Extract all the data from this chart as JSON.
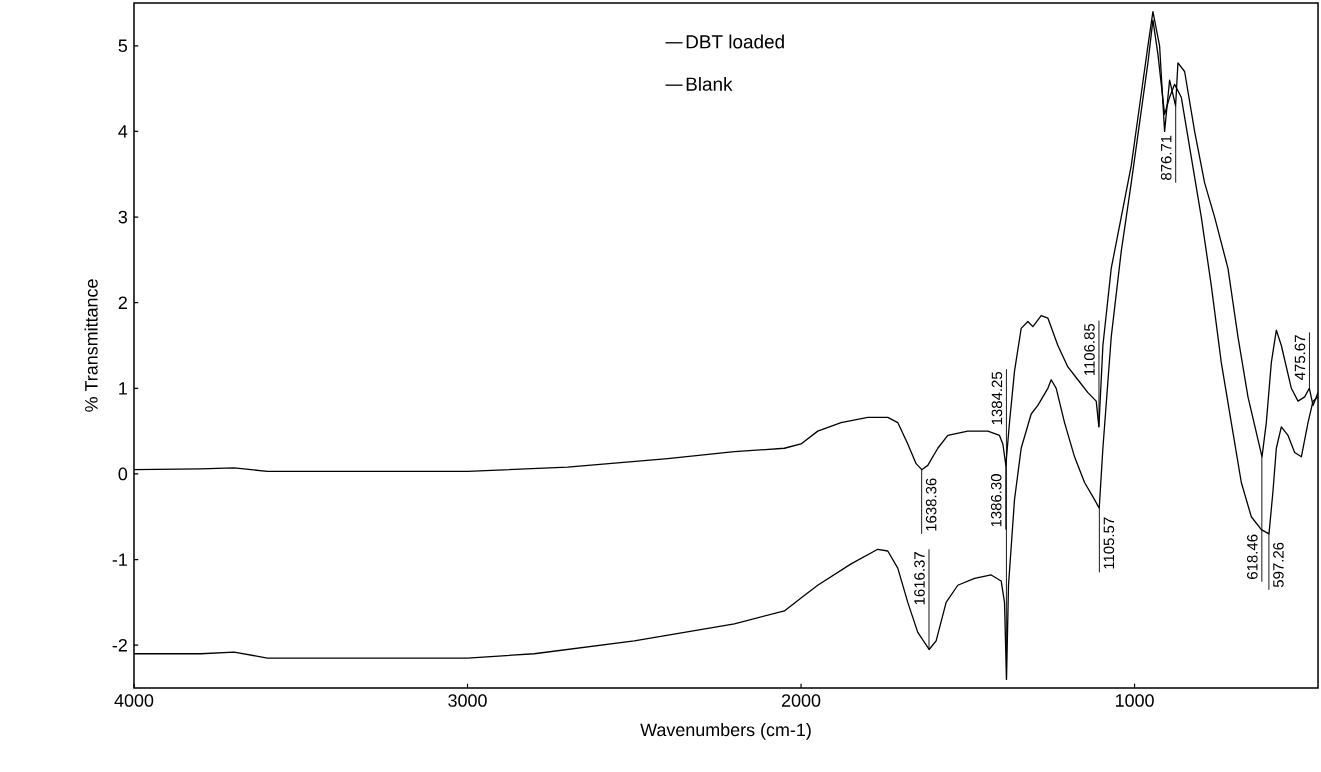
{
  "chart_data": {
    "type": "line",
    "xlabel": "Wavenumbers (cm-1)",
    "ylabel": "% Transmittance",
    "xlim": [
      4000,
      450
    ],
    "ylim": [
      -2.5,
      5.5
    ],
    "xticks": [
      4000,
      3000,
      2000,
      1000
    ],
    "yticks": [
      -2,
      -1,
      0,
      1,
      2,
      3,
      4,
      5
    ],
    "grid": false,
    "legend": "top",
    "line_style": "solid",
    "marker": "none",
    "series": [
      {
        "name": "DBT loaded",
        "color": "#000000",
        "x": [
          4000,
          3800,
          3700,
          3600,
          3300,
          3000,
          2700,
          2400,
          2200,
          2050,
          2000,
          1950,
          1880,
          1800,
          1740,
          1710,
          1680,
          1655,
          1638,
          1620,
          1590,
          1560,
          1500,
          1440,
          1405,
          1395,
          1386,
          1375,
          1360,
          1340,
          1320,
          1305,
          1280,
          1260,
          1230,
          1200,
          1170,
          1140,
          1115,
          1107,
          1095,
          1070,
          1040,
          1010,
          985,
          960,
          945,
          925,
          910,
          895,
          877,
          870,
          850,
          820,
          790,
          760,
          720,
          690,
          660,
          630,
          618,
          605,
          590,
          575,
          560,
          530,
          510,
          490,
          476,
          465,
          450
        ],
        "values": [
          0.05,
          0.06,
          0.07,
          0.03,
          0.03,
          0.03,
          0.08,
          0.18,
          0.26,
          0.3,
          0.35,
          0.5,
          0.6,
          0.66,
          0.66,
          0.6,
          0.35,
          0.12,
          0.05,
          0.1,
          0.3,
          0.45,
          0.5,
          0.5,
          0.45,
          0.35,
          0.1,
          0.6,
          1.2,
          1.7,
          1.78,
          1.72,
          1.85,
          1.82,
          1.5,
          1.25,
          1.1,
          0.95,
          0.85,
          0.55,
          1.5,
          2.4,
          3.0,
          3.6,
          4.3,
          5.0,
          5.4,
          5.0,
          4.0,
          4.6,
          4.3,
          4.8,
          4.7,
          4.0,
          3.4,
          3.0,
          2.4,
          1.6,
          0.9,
          0.4,
          0.2,
          0.6,
          1.3,
          1.68,
          1.5,
          1.0,
          0.85,
          0.9,
          1.0,
          0.8,
          0.95
        ]
      },
      {
        "name": "Blank",
        "color": "#000000",
        "x": [
          4000,
          3800,
          3700,
          3600,
          3300,
          3000,
          2800,
          2500,
          2200,
          2050,
          2000,
          1950,
          1850,
          1770,
          1740,
          1710,
          1680,
          1650,
          1616,
          1595,
          1565,
          1530,
          1480,
          1430,
          1400,
          1390,
          1384,
          1378,
          1360,
          1340,
          1310,
          1290,
          1260,
          1250,
          1235,
          1210,
          1180,
          1150,
          1120,
          1106,
          1095,
          1070,
          1040,
          1010,
          985,
          960,
          945,
          930,
          910,
          895,
          880,
          860,
          830,
          800,
          770,
          740,
          710,
          680,
          650,
          620,
          597,
          585,
          575,
          560,
          540,
          520,
          500,
          480,
          465,
          450
        ],
        "values": [
          -2.1,
          -2.1,
          -2.08,
          -2.15,
          -2.15,
          -2.15,
          -2.1,
          -1.95,
          -1.75,
          -1.6,
          -1.45,
          -1.3,
          -1.05,
          -0.88,
          -0.9,
          -1.1,
          -1.5,
          -1.85,
          -2.05,
          -1.95,
          -1.5,
          -1.3,
          -1.22,
          -1.18,
          -1.25,
          -1.5,
          -2.4,
          -1.3,
          -0.3,
          0.3,
          0.7,
          0.8,
          1.0,
          1.1,
          1.0,
          0.6,
          0.2,
          -0.1,
          -0.3,
          -0.4,
          0.3,
          1.6,
          2.6,
          3.4,
          4.1,
          4.8,
          5.3,
          4.9,
          4.2,
          4.4,
          4.55,
          4.4,
          3.7,
          3.0,
          2.2,
          1.3,
          0.6,
          -0.1,
          -0.5,
          -0.65,
          -0.7,
          -0.2,
          0.3,
          0.55,
          0.45,
          0.25,
          0.2,
          0.6,
          0.85,
          0.9
        ]
      }
    ],
    "annotations": [
      {
        "text": "1638.36",
        "x": 1638.36,
        "y": 0.05
      },
      {
        "text": "1616.37",
        "x": 1616.37,
        "y": -2.05
      },
      {
        "text": "1386.30",
        "x": 1386.3,
        "y": 0.1
      },
      {
        "text": "1384.25",
        "x": 1384.25,
        "y": -2.4
      },
      {
        "text": "1106.85",
        "x": 1106.85,
        "y": 0.55
      },
      {
        "text": "1105.57",
        "x": 1105.57,
        "y": -0.4
      },
      {
        "text": "876.71",
        "x": 876.71,
        "y": 4.3
      },
      {
        "text": "597.26",
        "x": 597.26,
        "y": -0.7
      },
      {
        "text": "618.46",
        "x": 618.46,
        "y": 0.2
      },
      {
        "text": "475.67",
        "x": 475.67,
        "y": 1.0
      }
    ]
  }
}
